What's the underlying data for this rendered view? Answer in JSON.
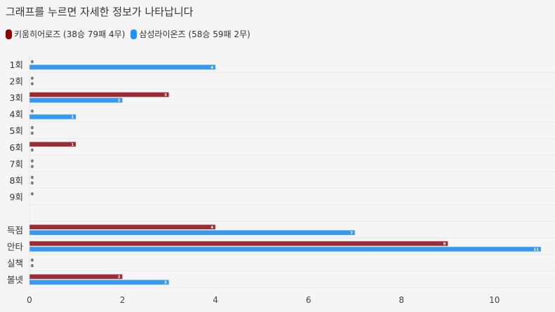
{
  "title": "그래프를 누르면 자세한 정보가 나타납니다",
  "chart_data": {
    "type": "bar",
    "orientation": "horizontal",
    "categories": [
      "1회",
      "2회",
      "3회",
      "4회",
      "5회",
      "6회",
      "7회",
      "8회",
      "9회",
      "",
      "득점",
      "안타",
      "실책",
      "볼넷"
    ],
    "series": [
      {
        "name": "키움히어로즈 (38승 79패 4무)",
        "color": "#9b2c35",
        "legend_color": "#8b0000",
        "values": [
          0,
          0,
          3,
          0,
          0,
          1,
          0,
          0,
          0,
          null,
          4,
          9,
          0,
          2
        ]
      },
      {
        "name": "삼성라이온즈 (58승 59패 2무)",
        "color": "#3399f3",
        "legend_color": "#1e90ff",
        "values": [
          4,
          0,
          2,
          1,
          0,
          0,
          0,
          0,
          null,
          null,
          7,
          11,
          0,
          3
        ]
      }
    ],
    "xlim": [
      0,
      11
    ],
    "xticks": [
      "0",
      "2",
      "4",
      "6",
      "8",
      "10"
    ],
    "grid": true,
    "legend_placement": "top-left",
    "data_labels": true
  }
}
